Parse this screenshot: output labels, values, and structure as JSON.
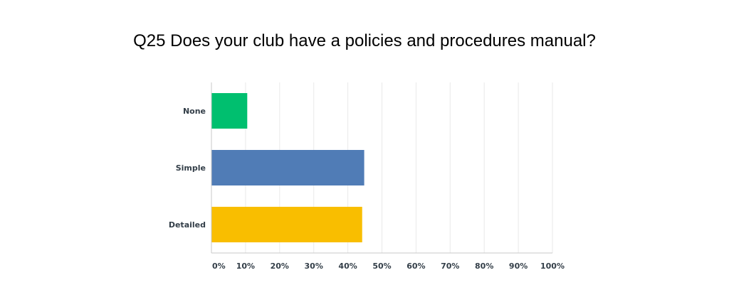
{
  "chart_data": {
    "type": "bar",
    "orientation": "horizontal",
    "title": "Q25 Does your club have a policies and procedures manual?",
    "categories": [
      "None",
      "Simple",
      "Detailed"
    ],
    "values": [
      10.5,
      44.8,
      44.2
    ],
    "colors": [
      "#00bf6f",
      "#507cb6",
      "#f9be00"
    ],
    "xlim": [
      0,
      100
    ],
    "xticks": [
      0,
      10,
      20,
      30,
      40,
      50,
      60,
      70,
      80,
      90,
      100
    ],
    "xtick_labels": [
      "0%",
      "10%",
      "20%",
      "30%",
      "40%",
      "50%",
      "60%",
      "70%",
      "80%",
      "90%",
      "100%"
    ],
    "grid": true,
    "gridline_color": "#e9e9e9",
    "axis_color": "#c8c8c8"
  }
}
